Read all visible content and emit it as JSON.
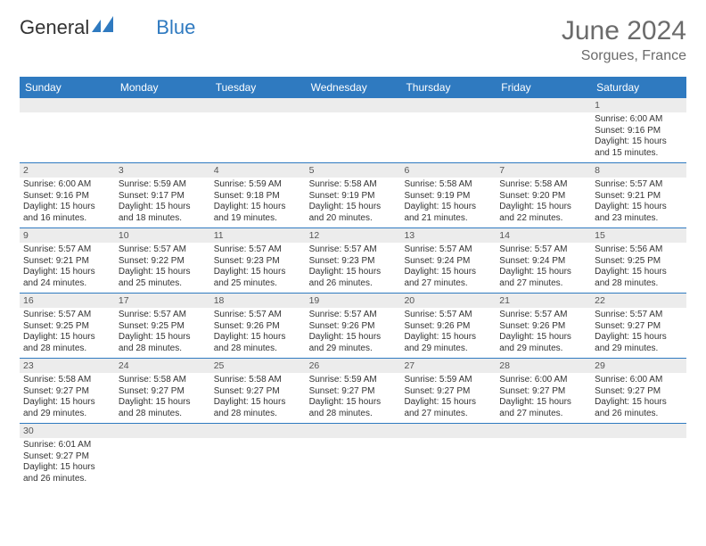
{
  "logo": {
    "text1": "General",
    "text2": "Blue"
  },
  "title": "June 2024",
  "location": "Sorgues, France",
  "weekdays": [
    "Sunday",
    "Monday",
    "Tuesday",
    "Wednesday",
    "Thursday",
    "Friday",
    "Saturday"
  ],
  "colors": {
    "header_bg": "#2f7ac0",
    "header_text": "#ffffff",
    "daynum_bg": "#ececec",
    "row_border": "#2f7ac0",
    "title_color": "#6b6b6b"
  },
  "weeks": [
    {
      "nums": [
        "",
        "",
        "",
        "",
        "",
        "",
        "1"
      ],
      "cells": [
        null,
        null,
        null,
        null,
        null,
        null,
        {
          "sunrise": "6:00 AM",
          "sunset": "9:16 PM",
          "daylight": "15 hours and 15 minutes."
        }
      ]
    },
    {
      "nums": [
        "2",
        "3",
        "4",
        "5",
        "6",
        "7",
        "8"
      ],
      "cells": [
        {
          "sunrise": "6:00 AM",
          "sunset": "9:16 PM",
          "daylight": "15 hours and 16 minutes."
        },
        {
          "sunrise": "5:59 AM",
          "sunset": "9:17 PM",
          "daylight": "15 hours and 18 minutes."
        },
        {
          "sunrise": "5:59 AM",
          "sunset": "9:18 PM",
          "daylight": "15 hours and 19 minutes."
        },
        {
          "sunrise": "5:58 AM",
          "sunset": "9:19 PM",
          "daylight": "15 hours and 20 minutes."
        },
        {
          "sunrise": "5:58 AM",
          "sunset": "9:19 PM",
          "daylight": "15 hours and 21 minutes."
        },
        {
          "sunrise": "5:58 AM",
          "sunset": "9:20 PM",
          "daylight": "15 hours and 22 minutes."
        },
        {
          "sunrise": "5:57 AM",
          "sunset": "9:21 PM",
          "daylight": "15 hours and 23 minutes."
        }
      ]
    },
    {
      "nums": [
        "9",
        "10",
        "11",
        "12",
        "13",
        "14",
        "15"
      ],
      "cells": [
        {
          "sunrise": "5:57 AM",
          "sunset": "9:21 PM",
          "daylight": "15 hours and 24 minutes."
        },
        {
          "sunrise": "5:57 AM",
          "sunset": "9:22 PM",
          "daylight": "15 hours and 25 minutes."
        },
        {
          "sunrise": "5:57 AM",
          "sunset": "9:23 PM",
          "daylight": "15 hours and 25 minutes."
        },
        {
          "sunrise": "5:57 AM",
          "sunset": "9:23 PM",
          "daylight": "15 hours and 26 minutes."
        },
        {
          "sunrise": "5:57 AM",
          "sunset": "9:24 PM",
          "daylight": "15 hours and 27 minutes."
        },
        {
          "sunrise": "5:57 AM",
          "sunset": "9:24 PM",
          "daylight": "15 hours and 27 minutes."
        },
        {
          "sunrise": "5:56 AM",
          "sunset": "9:25 PM",
          "daylight": "15 hours and 28 minutes."
        }
      ]
    },
    {
      "nums": [
        "16",
        "17",
        "18",
        "19",
        "20",
        "21",
        "22"
      ],
      "cells": [
        {
          "sunrise": "5:57 AM",
          "sunset": "9:25 PM",
          "daylight": "15 hours and 28 minutes."
        },
        {
          "sunrise": "5:57 AM",
          "sunset": "9:25 PM",
          "daylight": "15 hours and 28 minutes."
        },
        {
          "sunrise": "5:57 AM",
          "sunset": "9:26 PM",
          "daylight": "15 hours and 28 minutes."
        },
        {
          "sunrise": "5:57 AM",
          "sunset": "9:26 PM",
          "daylight": "15 hours and 29 minutes."
        },
        {
          "sunrise": "5:57 AM",
          "sunset": "9:26 PM",
          "daylight": "15 hours and 29 minutes."
        },
        {
          "sunrise": "5:57 AM",
          "sunset": "9:26 PM",
          "daylight": "15 hours and 29 minutes."
        },
        {
          "sunrise": "5:57 AM",
          "sunset": "9:27 PM",
          "daylight": "15 hours and 29 minutes."
        }
      ]
    },
    {
      "nums": [
        "23",
        "24",
        "25",
        "26",
        "27",
        "28",
        "29"
      ],
      "cells": [
        {
          "sunrise": "5:58 AM",
          "sunset": "9:27 PM",
          "daylight": "15 hours and 29 minutes."
        },
        {
          "sunrise": "5:58 AM",
          "sunset": "9:27 PM",
          "daylight": "15 hours and 28 minutes."
        },
        {
          "sunrise": "5:58 AM",
          "sunset": "9:27 PM",
          "daylight": "15 hours and 28 minutes."
        },
        {
          "sunrise": "5:59 AM",
          "sunset": "9:27 PM",
          "daylight": "15 hours and 28 minutes."
        },
        {
          "sunrise": "5:59 AM",
          "sunset": "9:27 PM",
          "daylight": "15 hours and 27 minutes."
        },
        {
          "sunrise": "6:00 AM",
          "sunset": "9:27 PM",
          "daylight": "15 hours and 27 minutes."
        },
        {
          "sunrise": "6:00 AM",
          "sunset": "9:27 PM",
          "daylight": "15 hours and 26 minutes."
        }
      ]
    },
    {
      "nums": [
        "30",
        "",
        "",
        "",
        "",
        "",
        ""
      ],
      "cells": [
        {
          "sunrise": "6:01 AM",
          "sunset": "9:27 PM",
          "daylight": "15 hours and 26 minutes."
        },
        null,
        null,
        null,
        null,
        null,
        null
      ]
    }
  ],
  "labels": {
    "sunrise": "Sunrise:",
    "sunset": "Sunset:",
    "daylight": "Daylight:"
  }
}
